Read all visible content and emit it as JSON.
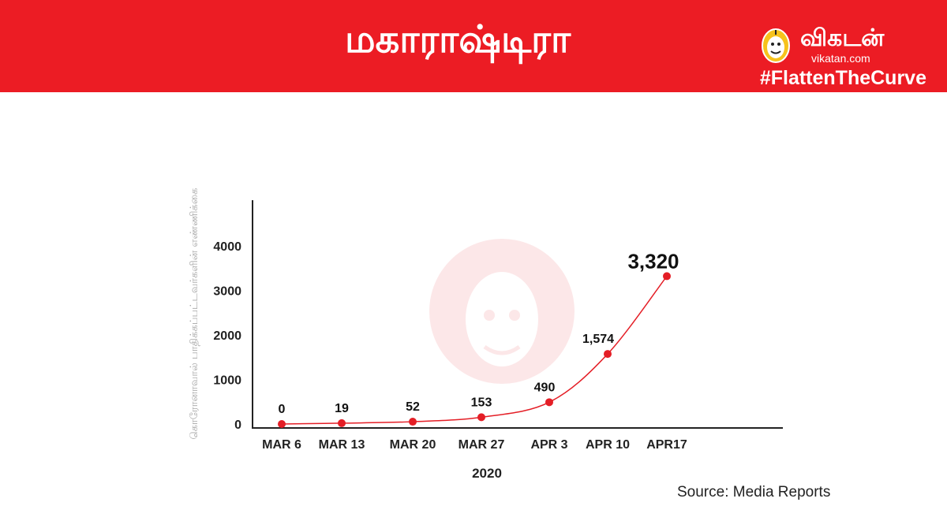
{
  "header": {
    "title": "மகாராஷ்டிரா",
    "brand_name": "விகடன்",
    "brand_site": "vikatan.com",
    "hashtag": "#FlattenTheCurve",
    "logo_icon": "vikatan-mascot-icon",
    "background_color": "#ec1c24"
  },
  "chart_data": {
    "type": "line",
    "title": "",
    "xlabel": "2020",
    "ylabel": "கொரோனாவால் பாதிக்கப்பட்டவர்களின் எண்ணிக்கை",
    "categories": [
      "MAR 6",
      "MAR 13",
      "MAR 20",
      "MAR 27",
      "APR 3",
      "APR 10",
      "APR17"
    ],
    "yticks": [
      "0",
      "1000",
      "2000",
      "3000",
      "4000"
    ],
    "ylim": [
      0,
      5000
    ],
    "series": [
      {
        "values": [
          0,
          19,
          52,
          153,
          490,
          1574,
          3320
        ],
        "labels": [
          "0",
          "19",
          "52",
          "153",
          "490",
          "1,574",
          "3,320"
        ],
        "color": "#e41e26"
      }
    ],
    "grid": false,
    "legend": "none"
  },
  "footer": {
    "source": "Source: Media Reports"
  }
}
